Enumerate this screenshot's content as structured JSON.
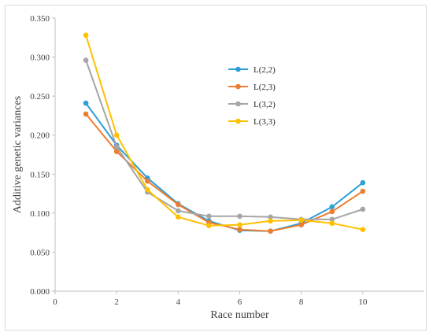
{
  "chart_data": {
    "type": "line",
    "title": "",
    "xlabel": "Race number",
    "ylabel": "Additive genetic variances",
    "xlim": [
      0,
      12
    ],
    "ylim": [
      0,
      0.35
    ],
    "xticks": [
      "0",
      "2",
      "4",
      "6",
      "8",
      "10"
    ],
    "xtick_values": [
      0,
      2,
      4,
      6,
      8,
      10
    ],
    "yticks": [
      "0.000",
      "0.050",
      "0.100",
      "0.150",
      "0.200",
      "0.250",
      "0.300",
      "0.350"
    ],
    "ytick_values": [
      0,
      0.05,
      0.1,
      0.15,
      0.2,
      0.25,
      0.3,
      0.35
    ],
    "grid": false,
    "legend_position": "center-right",
    "x": [
      1,
      2,
      3,
      4,
      5,
      6,
      7,
      8,
      9,
      10
    ],
    "series": [
      {
        "name": "L(2,2)",
        "color": "#2e9fd6",
        "values": [
          0.241,
          0.187,
          0.145,
          0.112,
          0.09,
          0.078,
          0.077,
          0.087,
          0.108,
          0.139
        ]
      },
      {
        "name": "L(2,3)",
        "color": "#ed7d31",
        "values": [
          0.227,
          0.179,
          0.141,
          0.111,
          0.088,
          0.079,
          0.077,
          0.085,
          0.102,
          0.128
        ]
      },
      {
        "name": "L(3,2)",
        "color": "#a5a5a5",
        "values": [
          0.296,
          0.185,
          0.127,
          0.103,
          0.096,
          0.096,
          0.095,
          0.092,
          0.092,
          0.105
        ]
      },
      {
        "name": "L(3,3)",
        "color": "#ffc000",
        "values": [
          0.328,
          0.2,
          0.13,
          0.095,
          0.084,
          0.085,
          0.09,
          0.091,
          0.087,
          0.079
        ]
      }
    ]
  }
}
